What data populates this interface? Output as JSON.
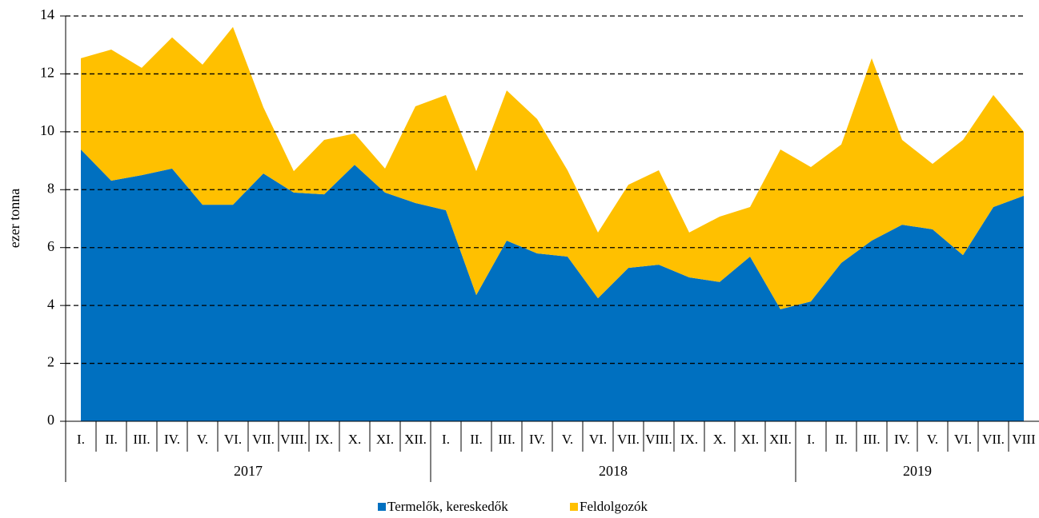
{
  "chart_data": {
    "type": "stacked_area",
    "y_label": "ezer tonna",
    "categories": [
      "I.",
      "II.",
      "III.",
      "IV.",
      "V.",
      "VI.",
      "VII.",
      "VIII.",
      "IX.",
      "X.",
      "XI.",
      "XII.",
      "I.",
      "II.",
      "III.",
      "IV.",
      "V.",
      "VI.",
      "VII.",
      "VIII.",
      "IX.",
      "X.",
      "XI.",
      "XII.",
      "I.",
      "II.",
      "III.",
      "IV.",
      "V.",
      "VI.",
      "VII.",
      "VIII"
    ],
    "groups": [
      {
        "name": "2017",
        "count": 12
      },
      {
        "name": "2018",
        "count": 12
      },
      {
        "name": "2019",
        "count": 8
      }
    ],
    "series": [
      {
        "name": "Termelők, kereskedők",
        "color": "#0070c0",
        "values": [
          9.39,
          8.31,
          8.5,
          8.73,
          7.48,
          7.48,
          8.56,
          7.9,
          7.84,
          8.86,
          7.9,
          7.54,
          7.29,
          4.36,
          6.24,
          5.8,
          5.69,
          4.25,
          5.3,
          5.41,
          4.97,
          4.81,
          5.69,
          3.87,
          4.14,
          5.47,
          6.24,
          6.79,
          6.63,
          5.74,
          7.4,
          7.79
        ]
      },
      {
        "name": "Feldolgozók",
        "color": "#ffc000",
        "values": [
          3.15,
          4.53,
          3.71,
          4.53,
          4.84,
          6.14,
          2.29,
          0.74,
          1.88,
          1.08,
          0.83,
          3.34,
          3.98,
          4.28,
          5.19,
          4.64,
          2.98,
          2.27,
          2.87,
          3.26,
          1.55,
          2.26,
          1.71,
          5.52,
          4.64,
          4.09,
          6.3,
          2.93,
          2.26,
          3.98,
          3.87,
          2.21
        ]
      }
    ],
    "ylim": [
      0,
      14
    ],
    "yticks": [
      0,
      2,
      4,
      6,
      8,
      10,
      12,
      14
    ],
    "grid": true,
    "legend": "bottom"
  }
}
